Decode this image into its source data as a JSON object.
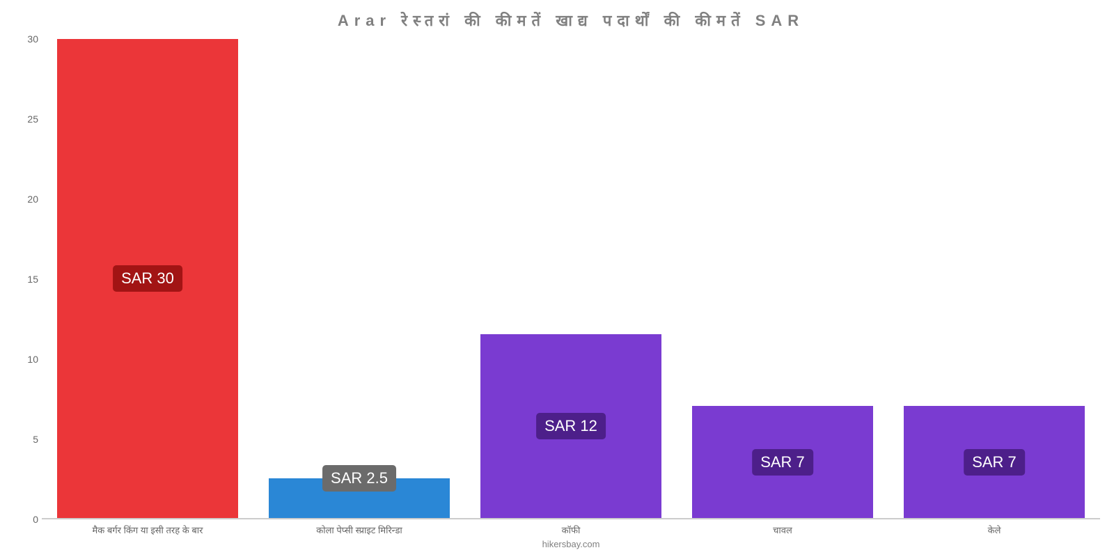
{
  "chart": {
    "type": "bar",
    "title": "Arar रेस्तरां की कीमतें खाद्य पदार्थों की कीमतें SAR",
    "title_color": "#808080",
    "title_fontsize": 22,
    "background_color": "#ffffff",
    "ylim": [
      0,
      30
    ],
    "yticks": [
      0,
      5,
      10,
      15,
      20,
      25,
      30
    ],
    "axis_color": "#cccccc",
    "tick_label_color": "#666666",
    "tick_fontsize": 14,
    "x_label_fontsize": 13,
    "bar_width_pct": 88,
    "badge_fontsize": 22,
    "badge_text_color": "#ffffff",
    "badge_border_radius": 5,
    "attribution": "hikersbay.com",
    "attribution_color": "#808080",
    "categories": [
      "मैक बर्गर किंग या इसी तरह के बार",
      "कोला पेप्सी स्प्राइट मिरिन्डा",
      "कॉफी",
      "चावल",
      "केले"
    ],
    "values": [
      30,
      2.5,
      11.5,
      7,
      7
    ],
    "value_labels": [
      "SAR 30",
      "SAR 2.5",
      "SAR 12",
      "SAR 7",
      "SAR 7"
    ],
    "bar_colors": [
      "#eb3639",
      "#2a87d6",
      "#7a3bd1",
      "#7a3bd1",
      "#7a3bd1"
    ],
    "badge_colors": [
      "#a21414",
      "#6b6b6b",
      "#4d1f8a",
      "#4d1f8a",
      "#4d1f8a"
    ]
  }
}
